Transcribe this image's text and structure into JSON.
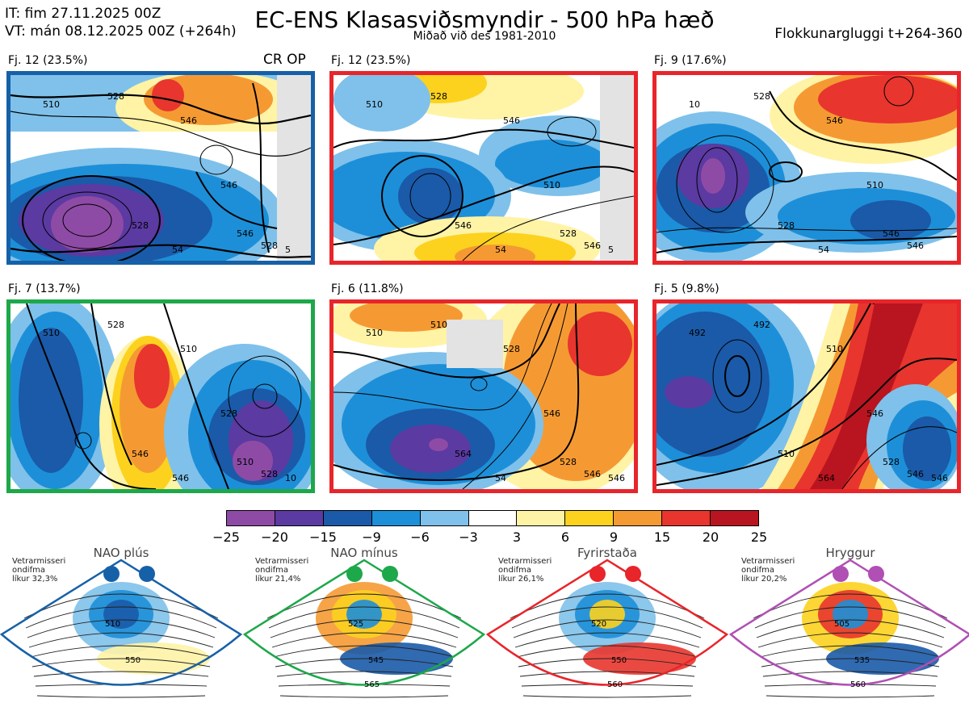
{
  "header": {
    "it": "IT: fim 27.11.2025 00Z",
    "vt": "VT: mán 08.12.2025 00Z  (+264h)",
    "title": "EC-ENS Klasasviðsmyndir - 500 hPa hæð",
    "subtitle": "Miðað við des 1981-2010",
    "window": "Flokkunargluggi t+264-360"
  },
  "panels": [
    {
      "label": "Fj. 12 (23.5%)",
      "extra": "CR OP",
      "border": "#1660a8",
      "contours": [
        "510",
        "528",
        "546",
        "546",
        "528",
        "546",
        "528",
        "54",
        "5"
      ]
    },
    {
      "label": "Fj. 12 (23.5%)",
      "border": "#e8252a",
      "contours": [
        "510",
        "528",
        "546",
        "510",
        "546",
        "528",
        "546",
        "54",
        "5"
      ]
    },
    {
      "label": "Fj. 9 (17.6%)",
      "border": "#e8252a",
      "contours": [
        "10",
        "528",
        "546",
        "510",
        "528",
        "546",
        "546",
        "54"
      ]
    },
    {
      "label": "Fj. 7 (13.7%)",
      "border": "#1da84a",
      "contours": [
        "510",
        "528",
        "510",
        "528",
        "546",
        "510",
        "528",
        "546",
        "10"
      ]
    },
    {
      "label": "Fj. 6 (11.8%)",
      "border": "#e8252a",
      "contours": [
        "510",
        "510",
        "528",
        "546",
        "564",
        "528",
        "546",
        "54",
        "546"
      ]
    },
    {
      "label": "Fj. 5 (9.8%)",
      "border": "#e8252a",
      "contours": [
        "492",
        "492",
        "510",
        "546",
        "510",
        "528",
        "546",
        "564",
        "546"
      ]
    }
  ],
  "colorbar": {
    "ticks": [
      "−25",
      "−20",
      "−15",
      "−9",
      "−6",
      "−3",
      "3",
      "6",
      "9",
      "15",
      "20",
      "25"
    ],
    "colors": [
      "#8e4ba5",
      "#5b3aa2",
      "#1a5aa8",
      "#1d8fd8",
      "#7fc1ea",
      "#ffffff",
      "#fff3a6",
      "#fcd21e",
      "#f59a33",
      "#e8352e",
      "#b81520"
    ]
  },
  "regimes": [
    {
      "title": "NAO plús",
      "note1": "Vetrarmisseri",
      "note2": "ondifma",
      "note3": "líkur 32,3%",
      "color": "#1660a8",
      "labels": [
        "510",
        "550"
      ]
    },
    {
      "title": "NAO mínus",
      "note1": "Vetrarmisseri",
      "note2": "ondifma",
      "note3": "líkur 21,4%",
      "color": "#1da84a",
      "labels": [
        "525",
        "545",
        "565"
      ]
    },
    {
      "title": "Fyrirstaða",
      "note1": "Vetrarmisseri",
      "note2": "ondifma",
      "note3": "líkur 26,1%",
      "color": "#e8252a",
      "labels": [
        "520",
        "550",
        "560"
      ]
    },
    {
      "title": "Hryggur",
      "note1": "Vetrarmisseri",
      "note2": "ondifma",
      "note3": "líkur 20,2%",
      "color": "#b04fb4",
      "labels": [
        "505",
        "535",
        "560"
      ]
    }
  ]
}
